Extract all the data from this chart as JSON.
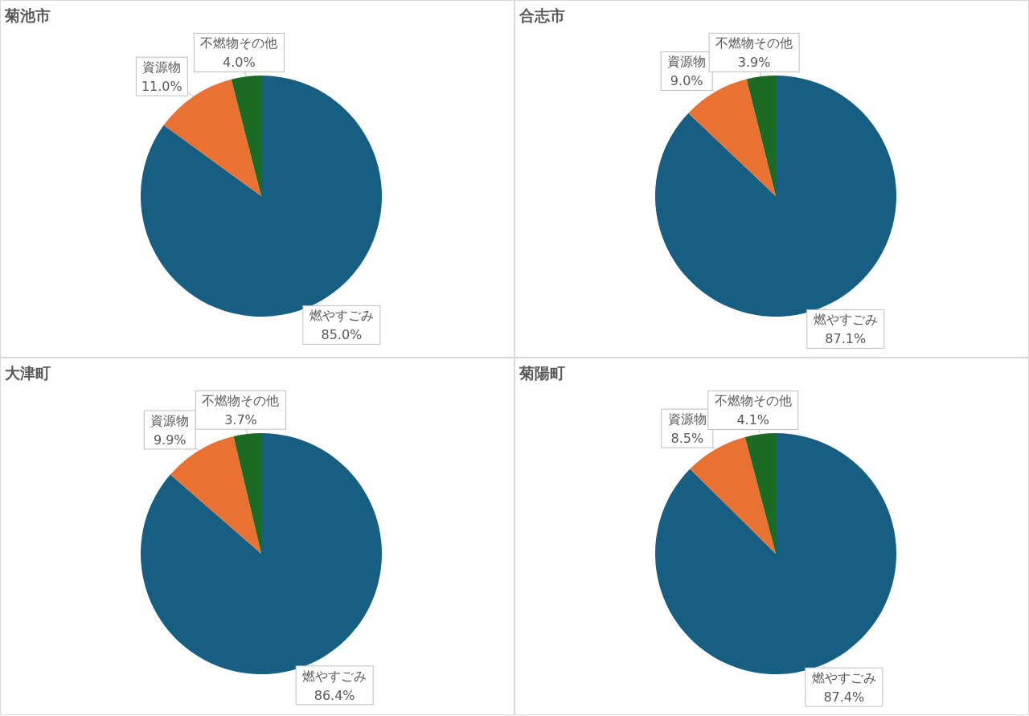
{
  "chart_data": [
    {
      "type": "pie",
      "title": "菊池市",
      "categories": [
        "燃やすごみ",
        "資源物",
        "不燃物その他"
      ],
      "values": [
        85.0,
        11.0,
        4.0
      ],
      "colors": [
        "#165e82",
        "#e97132",
        "#1b6b24"
      ],
      "value_labels": [
        "85.0%",
        "11.0%",
        "4.0%"
      ]
    },
    {
      "type": "pie",
      "title": "合志市",
      "categories": [
        "燃やすごみ",
        "資源物",
        "不燃物その他"
      ],
      "values": [
        87.1,
        9.0,
        3.9
      ],
      "colors": [
        "#165e82",
        "#e97132",
        "#1b6b24"
      ],
      "value_labels": [
        "87.1%",
        "9.0%",
        "3.9%"
      ]
    },
    {
      "type": "pie",
      "title": "大津町",
      "categories": [
        "燃やすごみ",
        "資源物",
        "不燃物その他"
      ],
      "values": [
        86.4,
        9.9,
        3.7
      ],
      "colors": [
        "#165e82",
        "#e97132",
        "#1b6b24"
      ],
      "value_labels": [
        "86.4%",
        "9.9%",
        "3.7%"
      ]
    },
    {
      "type": "pie",
      "title": "菊陽町",
      "categories": [
        "燃やすごみ",
        "資源物",
        "不燃物その他"
      ],
      "values": [
        87.4,
        8.5,
        4.1
      ],
      "colors": [
        "#165e82",
        "#e97132",
        "#1b6b24"
      ],
      "value_labels": [
        "87.4%",
        "8.5%",
        "4.1%"
      ]
    }
  ]
}
